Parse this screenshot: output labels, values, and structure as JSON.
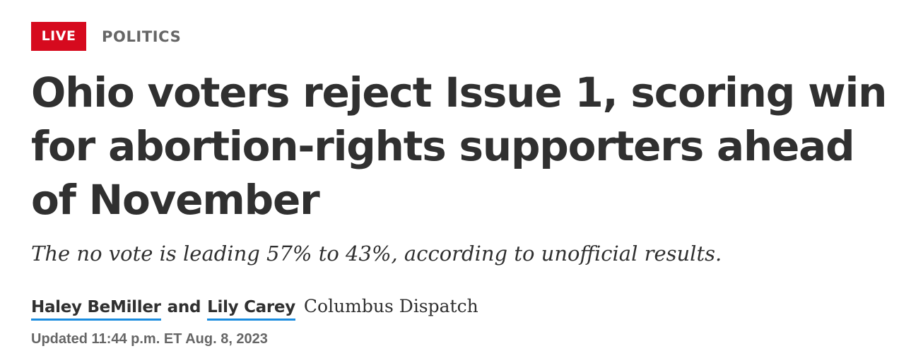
{
  "label": {
    "badge": "LIVE",
    "section": "POLITICS"
  },
  "article": {
    "headline": "Ohio voters reject Issue 1, scoring win for abortion-rights supporters ahead of November",
    "subheadline": "The no vote is leading 57% to 43%, according to unofficial results.",
    "byline": {
      "authors": [
        "Haley BeMiller",
        "Lily Carey"
      ],
      "conjunction": "and",
      "publication": "Columbus Dispatch"
    },
    "timestamp": "Updated 11:44 p.m. ET Aug. 8, 2023"
  },
  "colors": {
    "badge_background": "#d60a1e",
    "author_underline": "#1a8cdf",
    "text": "#303030",
    "muted": "#666666"
  }
}
